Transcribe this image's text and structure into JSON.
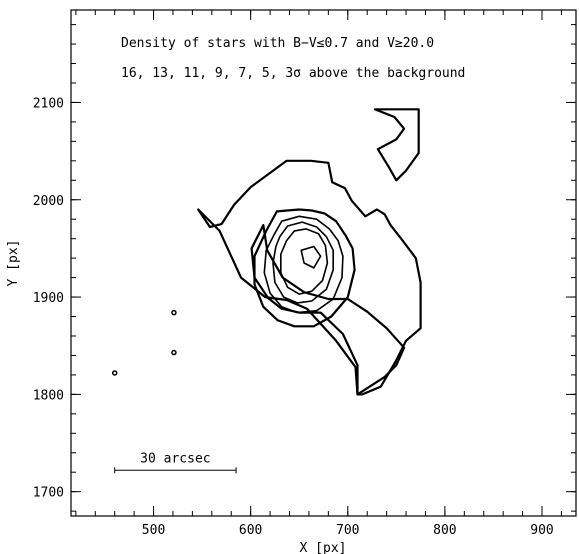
{
  "chart_data": {
    "type": "contour",
    "title_line1": "Density of stars with B−V≤0.7 and V≥20.0",
    "title_line2": "16, 13, 11, 9, 7, 5, 3σ above the background",
    "xlabel": "X [px]",
    "ylabel": "Y [px]",
    "xlim": [
      415,
      935
    ],
    "ylim": [
      1675,
      2195
    ],
    "x_ticks": [
      500,
      600,
      700,
      800,
      900
    ],
    "y_ticks": [
      1700,
      1800,
      1900,
      2000,
      2100
    ],
    "scale_bar_label": "30 arcsec",
    "scale_bar": {
      "x1": 460,
      "x2": 585,
      "y": 1722
    },
    "contour_levels_sigma": [
      3,
      5,
      7,
      9,
      11,
      13,
      16
    ],
    "contours": [
      {
        "level": 3,
        "shade": "none",
        "points": [
          [
            546,
            1990
          ],
          [
            558,
            1972
          ],
          [
            570,
            1975
          ],
          [
            583,
            1995
          ],
          [
            600,
            2013
          ],
          [
            637,
            2040
          ],
          [
            662,
            2040
          ],
          [
            680,
            2038
          ],
          [
            684,
            2018
          ],
          [
            697,
            2012
          ],
          [
            704,
            1999
          ],
          [
            718,
            1983
          ],
          [
            730,
            1990
          ],
          [
            738,
            1985
          ],
          [
            744,
            1974
          ],
          [
            755,
            1960
          ],
          [
            770,
            1940
          ],
          [
            775,
            1915
          ],
          [
            775,
            1868
          ],
          [
            760,
            1855
          ],
          [
            750,
            1835
          ],
          [
            734,
            1808
          ],
          [
            715,
            1800
          ],
          [
            710,
            1800
          ],
          [
            708,
            1828
          ],
          [
            688,
            1855
          ],
          [
            658,
            1888
          ],
          [
            637,
            1897
          ],
          [
            615,
            1900
          ],
          [
            590,
            1920
          ],
          [
            568,
            1968
          ],
          [
            546,
            1990
          ]
        ]
      },
      {
        "level": 3,
        "shade": "none",
        "points": [
          [
            728,
            2093
          ],
          [
            773,
            2093
          ],
          [
            773,
            2048
          ],
          [
            760,
            2030
          ],
          [
            750,
            2020
          ],
          [
            742,
            2034
          ],
          [
            731,
            2052
          ],
          [
            750,
            2062
          ],
          [
            758,
            2073
          ],
          [
            748,
            2085
          ],
          [
            728,
            2093
          ]
        ]
      },
      {
        "level": 5,
        "shade": "light",
        "points": [
          [
            613,
            1974
          ],
          [
            617,
            1948
          ],
          [
            633,
            1920
          ],
          [
            655,
            1905
          ],
          [
            680,
            1898
          ],
          [
            700,
            1898
          ],
          [
            720,
            1885
          ],
          [
            740,
            1868
          ],
          [
            758,
            1848
          ],
          [
            750,
            1830
          ],
          [
            738,
            1818
          ],
          [
            710,
            1800
          ],
          [
            710,
            1830
          ],
          [
            695,
            1862
          ],
          [
            672,
            1884
          ],
          [
            650,
            1884
          ],
          [
            632,
            1888
          ],
          [
            618,
            1899
          ],
          [
            604,
            1920
          ],
          [
            601,
            1950
          ],
          [
            613,
            1974
          ]
        ]
      },
      {
        "level": 7,
        "shade": "light",
        "points": [
          [
            616,
            1968
          ],
          [
            627,
            1988
          ],
          [
            650,
            1990
          ],
          [
            663,
            1989
          ],
          [
            676,
            1986
          ],
          [
            688,
            1978
          ],
          [
            698,
            1963
          ],
          [
            705,
            1950
          ],
          [
            707,
            1928
          ],
          [
            700,
            1900
          ],
          [
            683,
            1880
          ],
          [
            665,
            1870
          ],
          [
            645,
            1870
          ],
          [
            628,
            1876
          ],
          [
            613,
            1890
          ],
          [
            604,
            1913
          ],
          [
            604,
            1942
          ],
          [
            616,
            1968
          ]
        ]
      },
      {
        "level": 9,
        "shade": "medium",
        "points": [
          [
            624,
            1964
          ],
          [
            632,
            1978
          ],
          [
            650,
            1983
          ],
          [
            668,
            1980
          ],
          [
            681,
            1970
          ],
          [
            690,
            1958
          ],
          [
            695,
            1942
          ],
          [
            694,
            1920
          ],
          [
            685,
            1898
          ],
          [
            668,
            1886
          ],
          [
            648,
            1884
          ],
          [
            632,
            1890
          ],
          [
            620,
            1904
          ],
          [
            614,
            1925
          ],
          [
            616,
            1948
          ],
          [
            624,
            1964
          ]
        ]
      },
      {
        "level": 11,
        "shade": "medium",
        "points": [
          [
            630,
            1962
          ],
          [
            638,
            1973
          ],
          [
            653,
            1977
          ],
          [
            668,
            1972
          ],
          [
            678,
            1962
          ],
          [
            685,
            1948
          ],
          [
            685,
            1928
          ],
          [
            678,
            1908
          ],
          [
            663,
            1896
          ],
          [
            648,
            1894
          ],
          [
            634,
            1900
          ],
          [
            625,
            1915
          ],
          [
            623,
            1935
          ],
          [
            626,
            1952
          ],
          [
            630,
            1962
          ]
        ]
      },
      {
        "level": 13,
        "shade": "dark",
        "points": [
          [
            637,
            1958
          ],
          [
            645,
            1968
          ],
          [
            657,
            1970
          ],
          [
            670,
            1965
          ],
          [
            677,
            1953
          ],
          [
            679,
            1935
          ],
          [
            674,
            1917
          ],
          [
            663,
            1906
          ],
          [
            650,
            1903
          ],
          [
            638,
            1910
          ],
          [
            631,
            1925
          ],
          [
            631,
            1944
          ],
          [
            637,
            1958
          ]
        ]
      },
      {
        "level": 16,
        "shade": "darkest",
        "points": [
          [
            652,
            1948
          ],
          [
            665,
            1952
          ],
          [
            672,
            1942
          ],
          [
            665,
            1930
          ],
          [
            655,
            1935
          ],
          [
            652,
            1948
          ]
        ]
      }
    ],
    "isolated_points": [
      [
        521,
        1884
      ],
      [
        521,
        1843
      ],
      [
        460,
        1822
      ]
    ],
    "grid": false
  }
}
